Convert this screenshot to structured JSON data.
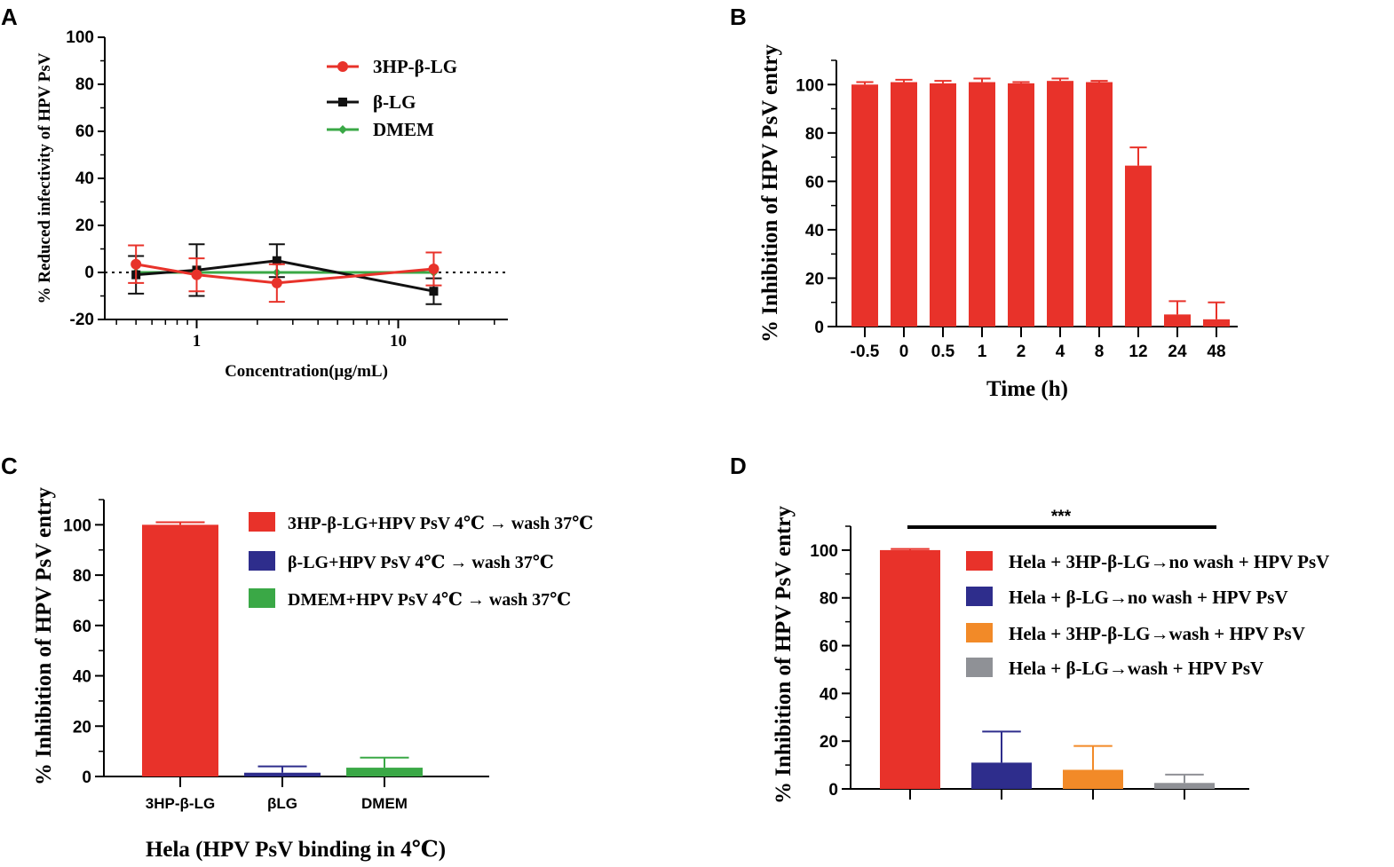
{
  "chart_data": [
    {
      "panel": "A",
      "type": "line",
      "xscale": "log",
      "xlabel": "Concentration(μg/mL)",
      "ylabel": "% Reduced infectivity of HPV PsV",
      "xticks": [
        1,
        10
      ],
      "xtick_labels": [
        "1",
        "10"
      ],
      "yticks": [
        -20,
        0,
        20,
        40,
        60,
        80,
        100
      ],
      "ylim": [
        -20,
        100
      ],
      "xlim": [
        0.35,
        35
      ],
      "reference_line": 0,
      "series": [
        {
          "name": "3HP-β-LG",
          "color": "#e8322a",
          "marker": "circle",
          "x": [
            0.5,
            1,
            2.5,
            15
          ],
          "y": [
            3.5,
            -1,
            -4.5,
            1.5
          ],
          "err": [
            8,
            7,
            8,
            7
          ]
        },
        {
          "name": "β-LG",
          "color": "#111111",
          "marker": "square",
          "x": [
            0.5,
            1,
            2.5,
            15
          ],
          "y": [
            -1,
            1,
            5,
            -8
          ],
          "err": [
            8,
            11,
            7,
            5.5
          ]
        },
        {
          "name": "DMEM",
          "color": "#3aa846",
          "marker": "diamond",
          "x": [
            0.5,
            1,
            2.5,
            15
          ],
          "y": [
            0,
            0,
            0,
            0
          ],
          "err": [
            0,
            0,
            0,
            0
          ]
        }
      ]
    },
    {
      "panel": "B",
      "type": "bar",
      "xlabel": "Time (h)",
      "ylabel": "% Inhibition of HPV PsV entry",
      "categories": [
        "-0.5",
        "0",
        "0.5",
        "1",
        "2",
        "4",
        "8",
        "12",
        "24",
        "48"
      ],
      "values": [
        100,
        101,
        100.5,
        101,
        100.5,
        101.5,
        101,
        66.5,
        5,
        3
      ],
      "errors": [
        1,
        1,
        1,
        1.5,
        0.5,
        1,
        0.5,
        7.5,
        5.5,
        7
      ],
      "color": "#e8322a",
      "yticks": [
        0,
        20,
        40,
        60,
        80,
        100
      ],
      "ylim": [
        0,
        110
      ]
    },
    {
      "panel": "C",
      "type": "bar",
      "xlabel": "Hela (HPV PsV binding in 4℃)",
      "ylabel": "% Inhibition of HPV PsV entry",
      "categories": [
        "3HP-β-LG",
        "βLG",
        "DMEM"
      ],
      "values": [
        100,
        1.5,
        3.5
      ],
      "errors": [
        1,
        2.5,
        4
      ],
      "colors": [
        "#e8322a",
        "#2e2d8c",
        "#3aa846"
      ],
      "legend": [
        "3HP-β-LG+HPV PsV 4℃ → wash 37℃",
        "β-LG+HPV PsV 4℃ → wash 37℃",
        "DMEM+HPV PsV 4℃ → wash 37℃"
      ],
      "yticks": [
        0,
        20,
        40,
        60,
        80,
        100
      ],
      "ylim": [
        0,
        110
      ]
    },
    {
      "panel": "D",
      "type": "bar",
      "xlabel": "",
      "ylabel": "% Inhibition of HPV PsV entry",
      "categories": [
        "",
        "",
        "",
        ""
      ],
      "values": [
        100,
        11,
        8,
        2.5
      ],
      "errors": [
        0.5,
        13,
        10,
        3.5
      ],
      "colors": [
        "#e8322a",
        "#2e2d8c",
        "#f28a28",
        "#8f9196"
      ],
      "legend": [
        "Hela + 3HP-β-LG→no wash + HPV PsV",
        "Hela + β-LG→no wash + HPV PsV",
        "Hela + 3HP-β-LG→wash + HPV PsV",
        "Hela + β-LG→wash + HPV PsV"
      ],
      "significance": "***",
      "yticks": [
        0,
        20,
        40,
        60,
        80,
        100
      ],
      "ylim": [
        0,
        110
      ]
    }
  ]
}
